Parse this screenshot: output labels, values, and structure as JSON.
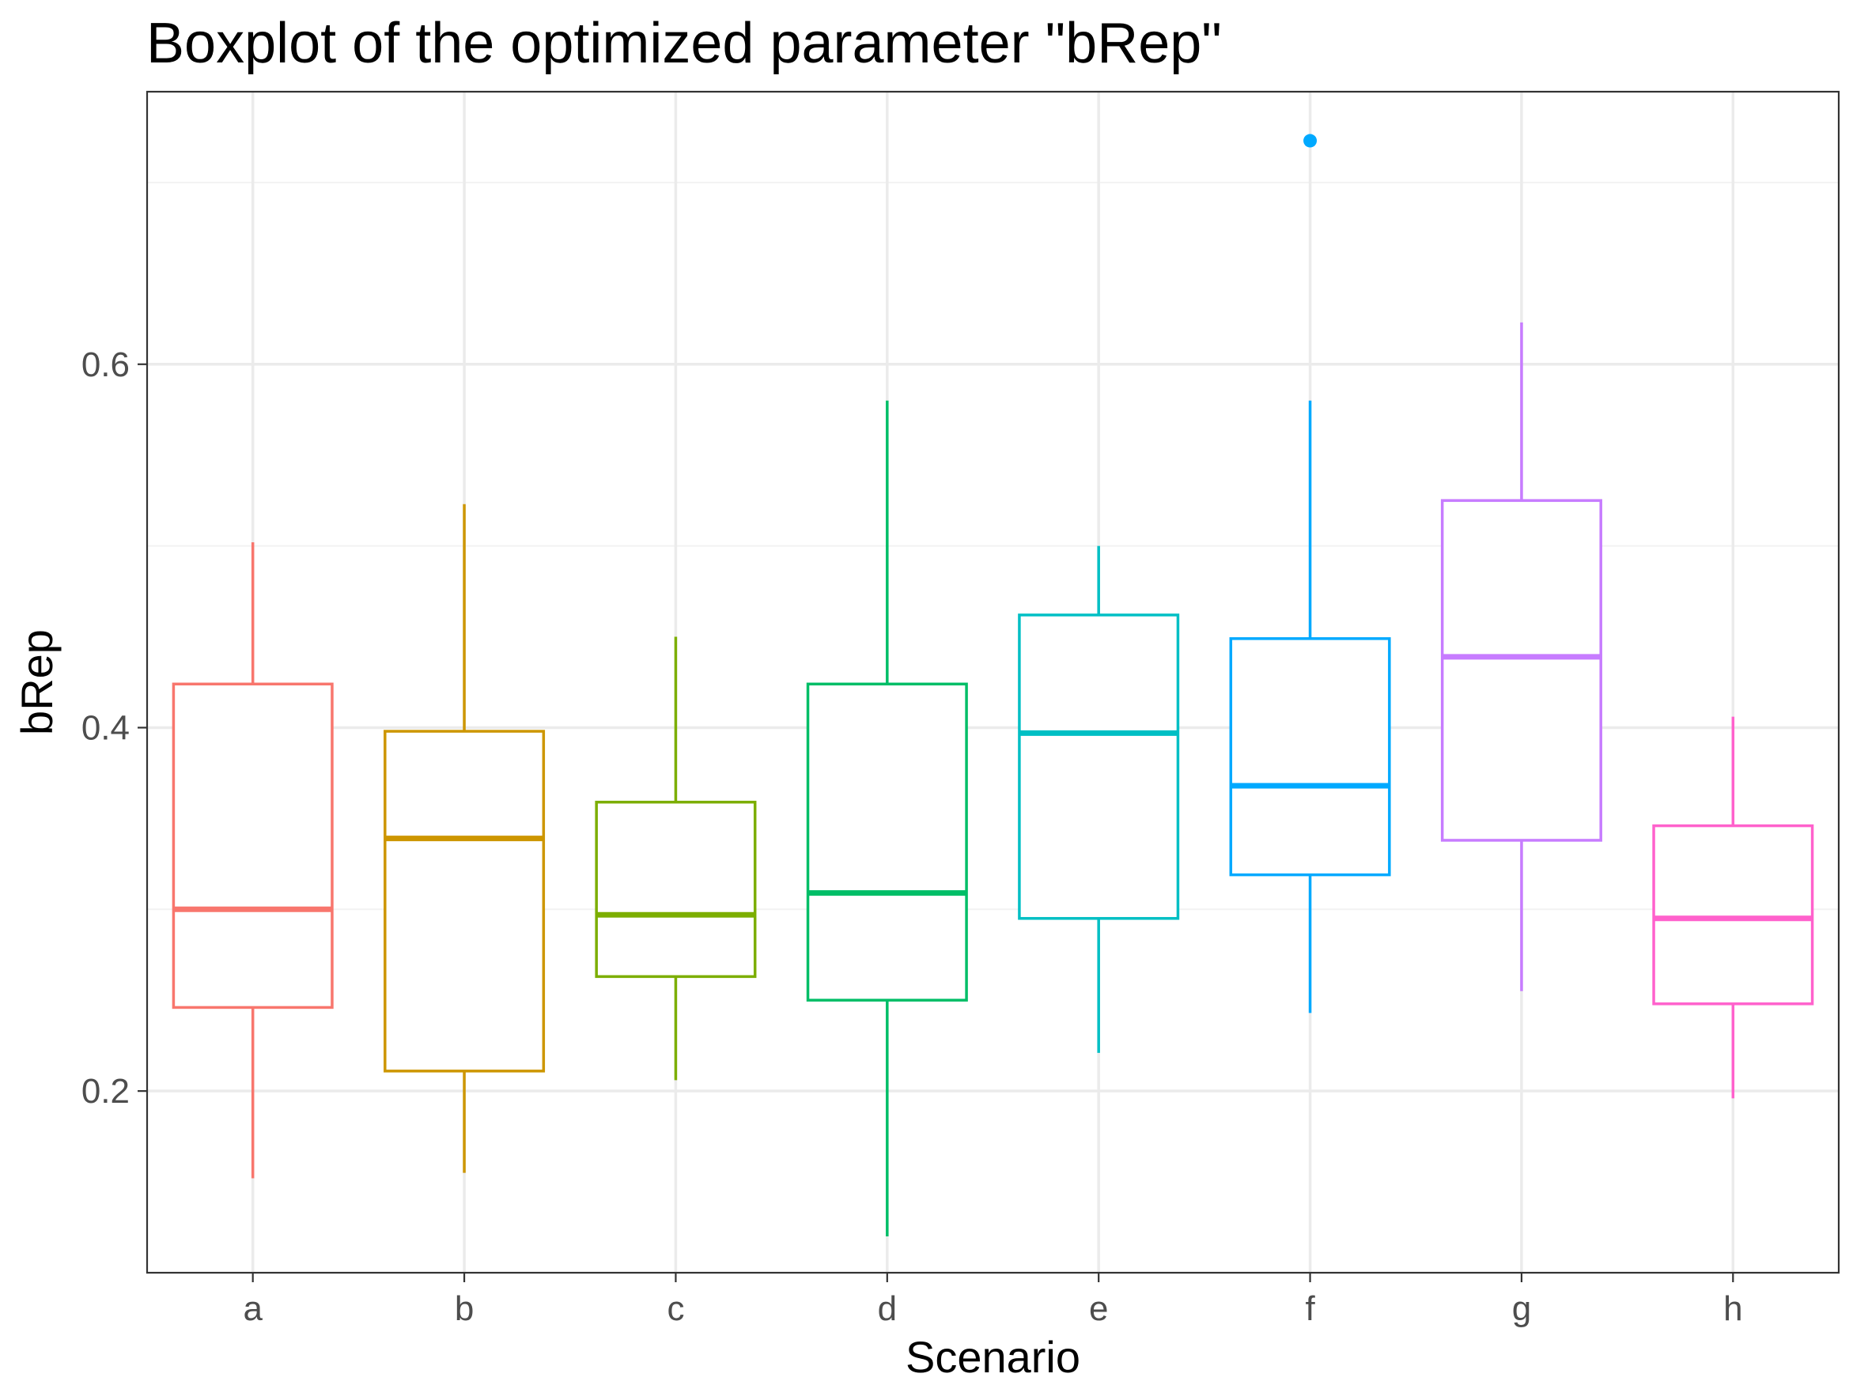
{
  "chart_data": {
    "type": "boxplot",
    "title": "Boxplot of the optimized parameter \"bRep\"",
    "xlabel": "Scenario",
    "ylabel": "bRep",
    "ylim": [
      0.1,
      0.75
    ],
    "yticks": [
      0.2,
      0.4,
      0.6
    ],
    "ytick_labels": [
      "0.2",
      "0.4",
      "0.6"
    ],
    "grid": true,
    "legend": "none",
    "categories": [
      "a",
      "b",
      "c",
      "d",
      "e",
      "f",
      "g",
      "h"
    ],
    "boxes": [
      {
        "category": "a",
        "color": "#F8766D",
        "whisker_low": 0.152,
        "q1": 0.246,
        "median": 0.3,
        "q3": 0.424,
        "whisker_high": 0.502,
        "outliers": []
      },
      {
        "category": "b",
        "color": "#CD9600",
        "whisker_low": 0.155,
        "q1": 0.211,
        "median": 0.339,
        "q3": 0.398,
        "whisker_high": 0.523,
        "outliers": []
      },
      {
        "category": "c",
        "color": "#7CAE00",
        "whisker_low": 0.206,
        "q1": 0.263,
        "median": 0.297,
        "q3": 0.359,
        "whisker_high": 0.45,
        "outliers": []
      },
      {
        "category": "d",
        "color": "#00BE67",
        "whisker_low": 0.12,
        "q1": 0.25,
        "median": 0.309,
        "q3": 0.424,
        "whisker_high": 0.58,
        "outliers": []
      },
      {
        "category": "e",
        "color": "#00BFC4",
        "whisker_low": 0.221,
        "q1": 0.295,
        "median": 0.397,
        "q3": 0.462,
        "whisker_high": 0.5,
        "outliers": []
      },
      {
        "category": "f",
        "color": "#00A9FF",
        "whisker_low": 0.243,
        "q1": 0.319,
        "median": 0.368,
        "q3": 0.449,
        "whisker_high": 0.58,
        "outliers": [
          0.723
        ]
      },
      {
        "category": "g",
        "color": "#C77CFF",
        "whisker_low": 0.255,
        "q1": 0.338,
        "median": 0.439,
        "q3": 0.525,
        "whisker_high": 0.623,
        "outliers": []
      },
      {
        "category": "h",
        "color": "#FF61CC",
        "whisker_low": 0.196,
        "q1": 0.248,
        "median": 0.295,
        "q3": 0.346,
        "whisker_high": 0.406,
        "outliers": []
      }
    ],
    "colors": {
      "panel_border": "#333333",
      "grid_major": "#ebebeb",
      "grid_minor": "#f2f2f2",
      "tick_text": "#4d4d4d"
    }
  }
}
